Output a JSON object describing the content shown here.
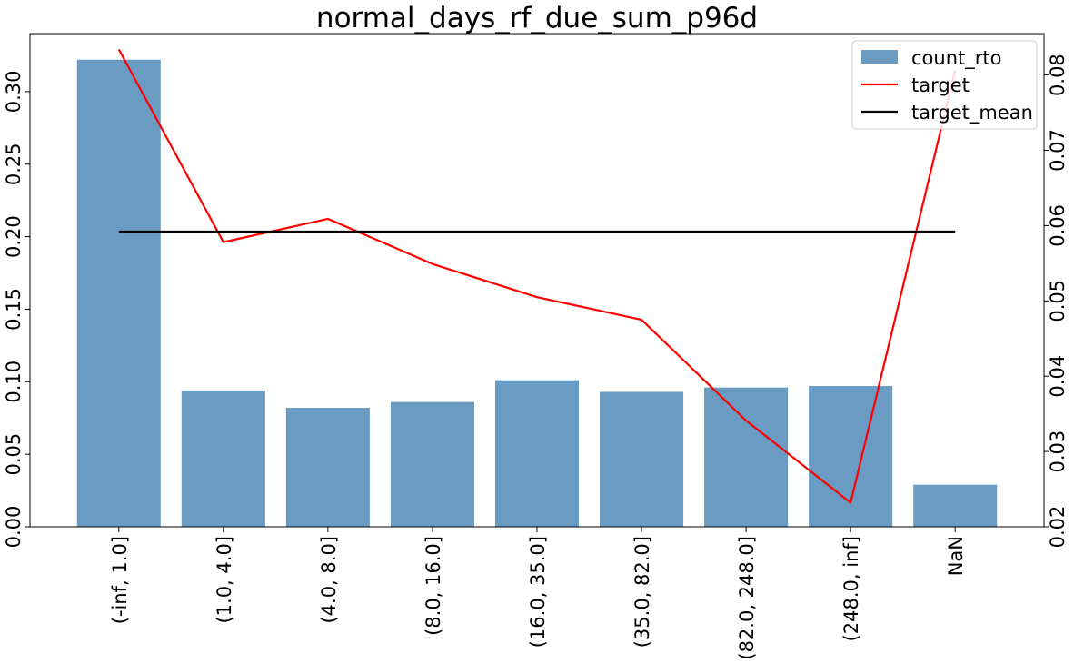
{
  "chart_data": {
    "type": "bar",
    "title": "normal_days_rf_due_sum_p96d",
    "categories": [
      "(-inf, 1.0]",
      "(1.0, 4.0]",
      "(4.0, 8.0]",
      "(8.0, 16.0]",
      "(16.0, 35.0]",
      "(35.0, 82.0]",
      "(82.0, 248.0]",
      "(248.0, inf]",
      "NaN"
    ],
    "series": [
      {
        "name": "count_rto",
        "kind": "bar",
        "axis": "left",
        "color": "#6a9bc3",
        "values": [
          0.322,
          0.094,
          0.082,
          0.086,
          0.101,
          0.093,
          0.096,
          0.097,
          0.029
        ]
      },
      {
        "name": "target",
        "kind": "line",
        "axis": "right",
        "color": "#ff0000",
        "values": [
          0.0834,
          0.0578,
          0.0609,
          0.0549,
          0.0505,
          0.0475,
          0.0341,
          0.0232,
          0.0806
        ]
      },
      {
        "name": "target_mean",
        "kind": "line",
        "axis": "right",
        "color": "#000000",
        "values": [
          0.0592,
          0.0592,
          0.0592,
          0.0592,
          0.0592,
          0.0592,
          0.0592,
          0.0592,
          0.0592
        ]
      }
    ],
    "y_left": {
      "lim": [
        0,
        0.34
      ],
      "ticks": [
        0.0,
        0.05,
        0.1,
        0.15,
        0.2,
        0.25,
        0.3
      ],
      "tick_labels": [
        "0.00",
        "0.05",
        "0.10",
        "0.15",
        "0.20",
        "0.25",
        "0.30"
      ]
    },
    "y_right": {
      "lim": [
        0.02,
        0.0855
      ],
      "ticks": [
        0.02,
        0.03,
        0.04,
        0.05,
        0.06,
        0.07,
        0.08
      ],
      "tick_labels": [
        "0.02",
        "0.03",
        "0.04",
        "0.05",
        "0.06",
        "0.07",
        "0.08"
      ]
    },
    "legend": {
      "position": "top-right",
      "entries": [
        "count_rto",
        "target",
        "target_mean"
      ]
    },
    "grid": false
  }
}
